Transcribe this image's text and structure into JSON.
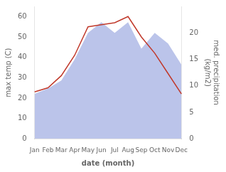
{
  "chart_data": {
    "type": "line",
    "xlabel": "date (month)",
    "ylabel": "max temp (C)",
    "y2label": "med. precipitation\n(kg/m2)",
    "categories": [
      "Jan",
      "Feb",
      "Mar",
      "Apr",
      "May",
      "Jun",
      "Jul",
      "Aug",
      "Sep",
      "Oct",
      "Nov",
      "Dec"
    ],
    "series": [
      {
        "type": "area",
        "axis": "y2",
        "color": "#bbc4ea",
        "values": [
          8.5,
          9.5,
          11,
          15,
          20,
          22,
          20,
          22,
          17,
          20,
          18,
          14
        ]
      },
      {
        "type": "line",
        "color": "#c0392b",
        "values": [
          23,
          25,
          31,
          41,
          55,
          56,
          57,
          60,
          50,
          42,
          32,
          22
        ]
      }
    ],
    "ylim": [
      0,
      65
    ],
    "yticks": [
      0,
      10,
      20,
      30,
      40,
      50,
      60
    ],
    "y2lim": [
      0,
      25
    ],
    "y2ticks": [
      0,
      5,
      10,
      15,
      20
    ],
    "grid": false,
    "legend": false
  }
}
